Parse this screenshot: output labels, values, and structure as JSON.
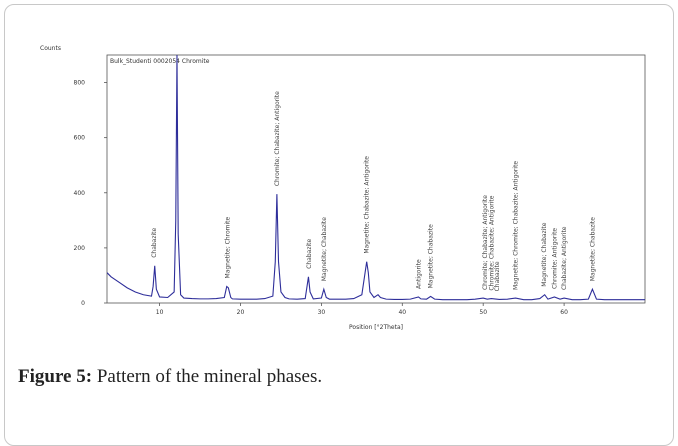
{
  "chart_data": {
    "type": "line",
    "y_label": "Counts",
    "x_label": "Position [°2Theta]",
    "inner_label": "Bulk_Studenti 0002054 Chromite",
    "xlim": [
      3.5,
      70
    ],
    "xticks": [
      10,
      20,
      30,
      40,
      50,
      60
    ],
    "ylim": [
      0,
      900
    ],
    "yticks": [
      0,
      200,
      400,
      600,
      800
    ],
    "series": [
      {
        "color": "#2e2e9a",
        "x": [
          3.5,
          4,
          5,
          6,
          7,
          8,
          9,
          9.2,
          9.4,
          9.6,
          10,
          11,
          11.8,
          12.0,
          12.15,
          12.3,
          12.6,
          13,
          14,
          15,
          16,
          17,
          18,
          18.3,
          18.5,
          18.8,
          19,
          20,
          21,
          22,
          23,
          24,
          24.3,
          24.5,
          24.7,
          25,
          25.5,
          26,
          27,
          28,
          28.4,
          28.6,
          29,
          30,
          30.3,
          30.6,
          31,
          32,
          33,
          34,
          35,
          35.4,
          35.6,
          35.8,
          36,
          36.5,
          37,
          37.3,
          38,
          39,
          40,
          41,
          42,
          42.3,
          43,
          43.5,
          44,
          45,
          46,
          47,
          48,
          49,
          50,
          50.5,
          51,
          52,
          53,
          54,
          55,
          56,
          57,
          57.6,
          58,
          58.8,
          59.5,
          60,
          61,
          62,
          63,
          63.5,
          64,
          65,
          66,
          67,
          68,
          69,
          70
        ],
        "values": [
          110,
          95,
          75,
          55,
          40,
          30,
          25,
          60,
          135,
          50,
          22,
          20,
          40,
          300,
          900,
          250,
          30,
          18,
          16,
          15,
          15,
          16,
          20,
          60,
          55,
          20,
          15,
          14,
          14,
          14,
          16,
          25,
          150,
          395,
          150,
          40,
          20,
          15,
          14,
          16,
          95,
          40,
          15,
          18,
          50,
          20,
          14,
          14,
          14,
          16,
          30,
          110,
          150,
          110,
          40,
          20,
          30,
          20,
          14,
          13,
          13,
          14,
          22,
          15,
          14,
          24,
          14,
          12,
          12,
          12,
          12,
          14,
          18,
          14,
          16,
          13,
          14,
          18,
          12,
          12,
          16,
          30,
          14,
          22,
          14,
          18,
          12,
          12,
          14,
          50,
          14,
          12,
          12,
          12,
          12,
          12,
          12
        ]
      }
    ],
    "annotations": [
      {
        "x": 9.3,
        "text": "Chabazite"
      },
      {
        "x": 18.4,
        "text": "Magnetite; Chromite"
      },
      {
        "x": 24.5,
        "text": "Chromite; Chabazite; Antigorite"
      },
      {
        "x": 28.5,
        "text": "Chabazite"
      },
      {
        "x": 30.3,
        "text": "Magnetite; Chabazite"
      },
      {
        "x": 35.6,
        "text": "Magnetite; Chabazite; Antigorite"
      },
      {
        "x": 42,
        "text": "Antigorite"
      },
      {
        "x": 43.5,
        "text": "Magnetite; Chabazite"
      },
      {
        "x": 50.2,
        "text": "Chromite; Chabazite; Antigorite"
      },
      {
        "x": 51,
        "text": "Chromite; Chabazite; Antigorite"
      },
      {
        "x": 51.7,
        "text": "Chabazite"
      },
      {
        "x": 54,
        "text": "Magnetite; Chromite; Chabazite; Antigorite"
      },
      {
        "x": 57.5,
        "text": "Magnetite; Chabazite"
      },
      {
        "x": 58.8,
        "text": "Chromite; Antigorite"
      },
      {
        "x": 60,
        "text": "Chabazite; Antigorite"
      },
      {
        "x": 63.5,
        "text": "Magnetite; Chabazite"
      }
    ]
  },
  "caption": {
    "label": "Figure 5:",
    "text": "Pattern of the mineral phases."
  }
}
